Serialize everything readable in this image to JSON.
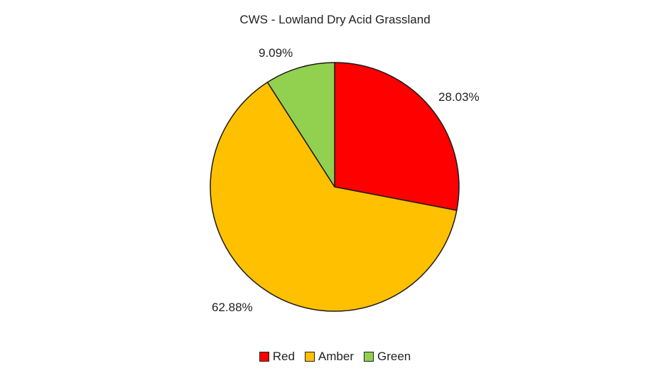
{
  "chart_data": {
    "type": "pie",
    "title": "CWS - Lowland Dry Acid Grassland",
    "categories": [
      "Red",
      "Amber",
      "Green"
    ],
    "values": [
      28.03,
      62.88,
      9.09
    ],
    "labels": [
      "28.03%",
      "62.88%",
      "9.09%"
    ],
    "colors": [
      "#ff0000",
      "#ffc000",
      "#92d050"
    ],
    "start_angle": "12 o'clock, clockwise",
    "legend_position": "bottom"
  },
  "legend": {
    "items": [
      {
        "label": "Red",
        "color": "#ff0000"
      },
      {
        "label": "Amber",
        "color": "#ffc000"
      },
      {
        "label": "Green",
        "color": "#92d050"
      }
    ]
  }
}
